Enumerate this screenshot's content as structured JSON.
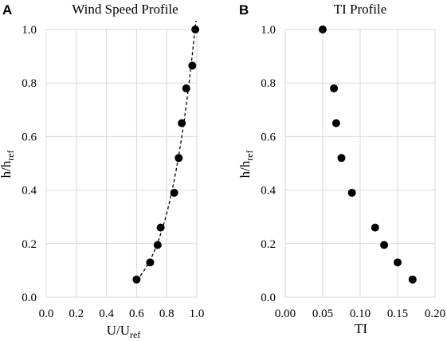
{
  "chart_data": [
    {
      "type": "scatter",
      "panel_label": "A",
      "title": "Wind Speed Profile",
      "xlabel": {
        "main": "U/U",
        "sub": "ref"
      },
      "ylabel": {
        "main": "h/h",
        "sub": "ref"
      },
      "xlim": [
        0,
        1.0
      ],
      "ylim": [
        0,
        1.0
      ],
      "x_ticks": [
        "0.0",
        "0.2",
        "0.4",
        "0.6",
        "0.8",
        "1.0"
      ],
      "y_ticks": [
        "0.0",
        "0.2",
        "0.4",
        "0.6",
        "0.8",
        "1.0"
      ],
      "grid": true,
      "trendline": "dashed power-law fit",
      "series": [
        {
          "x": [
            0.6,
            0.69,
            0.74,
            0.76,
            0.85,
            0.88,
            0.9,
            0.93,
            0.97,
            0.99
          ],
          "y": [
            0.066,
            0.13,
            0.195,
            0.26,
            0.39,
            0.52,
            0.65,
            0.78,
            0.865,
            1.0
          ]
        }
      ]
    },
    {
      "type": "scatter",
      "panel_label": "B",
      "title": "TI Profile",
      "xlabel": {
        "main": "TI",
        "sub": ""
      },
      "ylabel": {
        "main": "h/h",
        "sub": "ref"
      },
      "xlim": [
        0,
        0.2
      ],
      "ylim": [
        0,
        1.0
      ],
      "x_ticks": [
        "0.00",
        "0.05",
        "0.10",
        "0.15",
        "0.20"
      ],
      "y_ticks": [
        "0.0",
        "0.2",
        "0.4",
        "0.6",
        "0.8",
        "1.0"
      ],
      "grid": true,
      "series": [
        {
          "x": [
            0.05,
            0.065,
            0.068,
            0.075,
            0.089,
            0.12,
            0.132,
            0.15,
            0.17
          ],
          "y": [
            1.0,
            0.78,
            0.65,
            0.52,
            0.39,
            0.26,
            0.195,
            0.13,
            0.066
          ]
        }
      ]
    }
  ],
  "style": {
    "marker_color": "#000000",
    "grid_color": "#d9d9d9",
    "line_color": "#000000"
  }
}
